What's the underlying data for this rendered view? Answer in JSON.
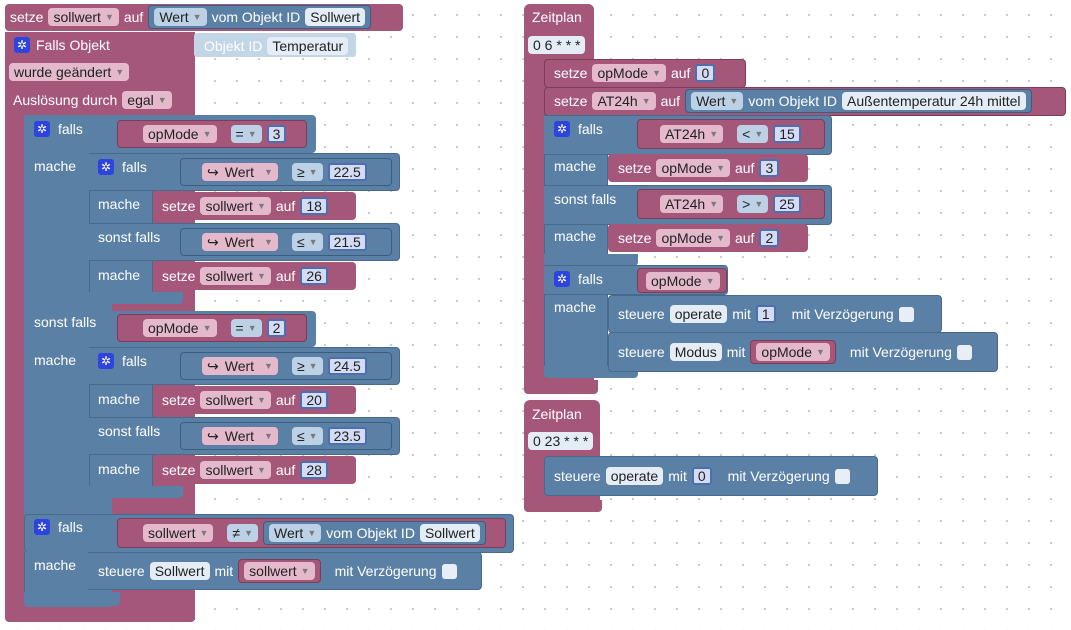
{
  "workspace": {
    "top_setze": {
      "setze": "setze",
      "var": "sollwert",
      "auf": "auf",
      "attr": "Wert",
      "vom_objekt": "vom Objekt ID",
      "obj": "Sollwert"
    },
    "trigger": {
      "title": "Falls Objekt",
      "objekt_id_label": "Objekt ID",
      "objekt_id_value": "Temperatur",
      "condition": "wurde geändert",
      "ausloesung": "Auslösung durch",
      "ausloesung_value": "egal"
    },
    "labels": {
      "falls": "falls",
      "mache": "mache",
      "sonst_falls": "sonst falls",
      "setze": "setze",
      "auf": "auf",
      "steuere": "steuere",
      "mit": "mit",
      "mit_verzoegerung": "mit Verzögerung",
      "vom_objekt": "vom Objekt ID",
      "zeitplan": "Zeitplan"
    },
    "left": {
      "if1": {
        "var": "opMode",
        "op": "=",
        "val": "3"
      },
      "inner1": {
        "c1": {
          "sym": "↪",
          "var": "Wert",
          "op": "≥",
          "val": "22.5"
        },
        "s1": {
          "var": "sollwert",
          "val": "18"
        },
        "c2": {
          "sym": "↪",
          "var": "Wert",
          "op": "≤",
          "val": "21.5"
        },
        "s2": {
          "var": "sollwert",
          "val": "26"
        }
      },
      "elif1": {
        "var": "opMode",
        "op": "=",
        "val": "2"
      },
      "inner2": {
        "c1": {
          "sym": "↪",
          "var": "Wert",
          "op": "≥",
          "val": "24.5"
        },
        "s1": {
          "var": "sollwert",
          "val": "20"
        },
        "c2": {
          "sym": "↪",
          "var": "Wert",
          "op": "≤",
          "val": "23.5"
        },
        "s2": {
          "var": "sollwert",
          "val": "28"
        }
      },
      "if2": {
        "var": "sollwert",
        "op": "≠",
        "attr": "Wert",
        "obj": "Sollwert"
      },
      "steuere": {
        "obj": "Sollwert",
        "var": "sollwert"
      }
    },
    "sched1": {
      "cron": "0 6 * * *",
      "set1": {
        "var": "opMode",
        "val": "0"
      },
      "set2": {
        "var": "AT24h",
        "attr": "Wert",
        "obj": "Außentemperatur 24h mittel"
      },
      "c1": {
        "var": "AT24h",
        "op": "<",
        "val": "15"
      },
      "s1": {
        "var": "opMode",
        "val": "3"
      },
      "c2": {
        "var": "AT24h",
        "op": ">",
        "val": "25"
      },
      "s2": {
        "var": "opMode",
        "val": "2"
      },
      "if3": {
        "var": "opMode"
      },
      "st1": {
        "obj": "operate",
        "val": "1"
      },
      "st2": {
        "obj": "Modus",
        "var": "opMode"
      }
    },
    "sched2": {
      "cron": "0 23 * * *",
      "st": {
        "obj": "operate",
        "val": "0"
      }
    }
  }
}
